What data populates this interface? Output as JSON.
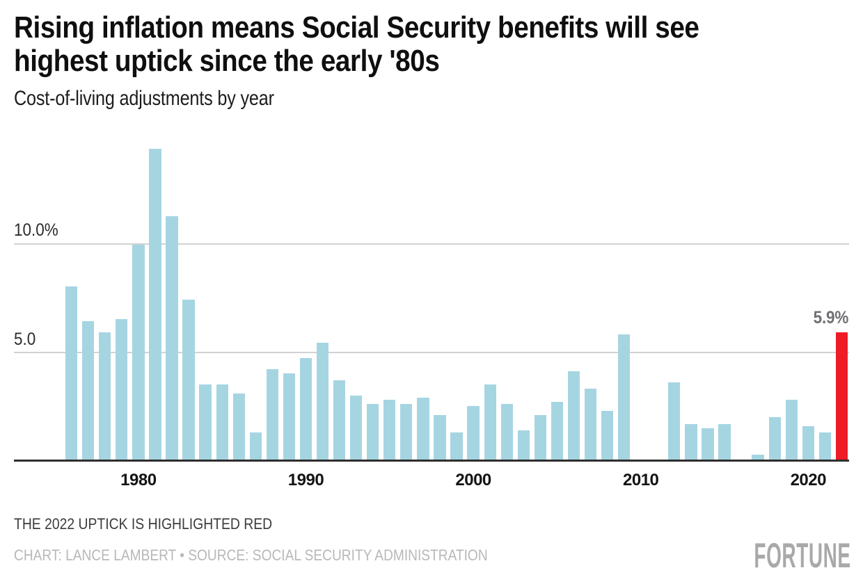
{
  "header": {
    "title": "Rising inflation means Social Security benefits will see\nhighest uptick since the early '80s",
    "subtitle": "Cost-of-living adjustments by year"
  },
  "chart_data": {
    "type": "bar",
    "title": "Rising inflation means Social Security benefits will see highest uptick since the early '80s",
    "subtitle": "Cost-of-living adjustments by year",
    "unit": "percent",
    "years": [
      1976,
      1977,
      1978,
      1979,
      1980,
      1981,
      1982,
      1983,
      1984,
      1985,
      1986,
      1987,
      1988,
      1989,
      1990,
      1991,
      1992,
      1993,
      1994,
      1995,
      1996,
      1997,
      1998,
      1999,
      2000,
      2001,
      2002,
      2003,
      2004,
      2005,
      2006,
      2007,
      2008,
      2009,
      2010,
      2011,
      2012,
      2013,
      2014,
      2015,
      2016,
      2017,
      2018,
      2019,
      2020,
      2021,
      2022
    ],
    "values": [
      8.0,
      6.4,
      5.9,
      6.5,
      9.9,
      14.3,
      11.2,
      7.4,
      3.5,
      3.5,
      3.1,
      1.3,
      4.2,
      4.0,
      4.7,
      5.4,
      3.7,
      3.0,
      2.6,
      2.8,
      2.6,
      2.9,
      2.1,
      1.3,
      2.5,
      3.5,
      2.6,
      1.4,
      2.1,
      2.7,
      4.1,
      3.3,
      2.3,
      5.8,
      0.0,
      0.0,
      3.6,
      1.7,
      1.5,
      1.7,
      0.0,
      0.3,
      2.0,
      2.8,
      1.6,
      1.3,
      5.9
    ],
    "x_tick_labels": [
      "1980",
      "1990",
      "2000",
      "2010",
      "2020"
    ],
    "y_axis_labels": [
      "10.0%",
      "5.0"
    ],
    "y_gridlines": [
      10.0,
      5.0
    ],
    "ylim": [
      0,
      14.3
    ],
    "grid": true,
    "legend": "none",
    "highlight": {
      "year": 2022,
      "value": 5.9,
      "label": "5.9%"
    }
  },
  "colors": {
    "bar": "#a6d5e2",
    "highlight": "#ee1c25",
    "gridline": "#d2d2d2",
    "axis": "#2e2e2e",
    "value_label": "#6f7073",
    "note": "#3c3c3c",
    "credit": "#b8b8b8",
    "logo": "#a9a9a9"
  },
  "footer": {
    "note": "THE 2022 UPTICK IS HIGHLIGHTED RED",
    "credit": "CHART: LANCE LAMBERT • SOURCE: SOCIAL SECURITY ADMINISTRATION",
    "logo": "FORTUNE"
  }
}
